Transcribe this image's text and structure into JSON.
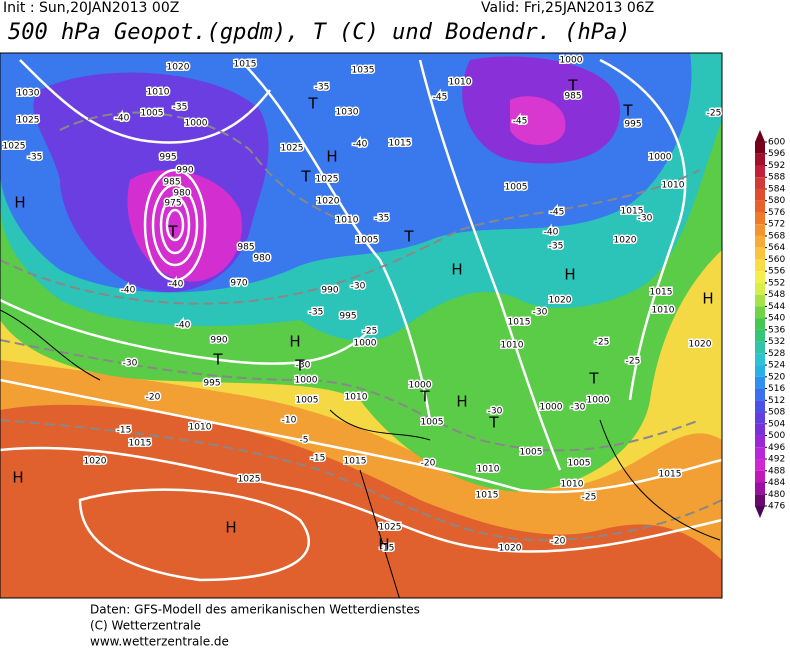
{
  "header": {
    "init": "Init : Sun,20JAN2013 00Z",
    "valid": "Valid: Fri,25JAN2013 06Z",
    "title": "500 hPa Geopot.(gpdm), T (C) und Bodendr. (hPa)"
  },
  "colorbar": {
    "labels": [
      600,
      596,
      592,
      588,
      584,
      580,
      576,
      572,
      568,
      564,
      560,
      556,
      552,
      548,
      544,
      540,
      536,
      532,
      528,
      524,
      520,
      516,
      512,
      508,
      504,
      500,
      496,
      492,
      488,
      484,
      480,
      476
    ],
    "colors": [
      "#7a0020",
      "#a3102c",
      "#c0203a",
      "#d23a3a",
      "#e04b2e",
      "#e8602a",
      "#ee7a2a",
      "#f29430",
      "#f6ad36",
      "#f9c53c",
      "#fadc44",
      "#f6ee4c",
      "#d8ee4a",
      "#a8e24a",
      "#70d446",
      "#44c850",
      "#34c47c",
      "#30c4a8",
      "#2cc4d0",
      "#28b0e8",
      "#3090f0",
      "#3a70f0",
      "#4a50e8",
      "#6040e0",
      "#7a30d8",
      "#9a28d8",
      "#b828d8",
      "#d028d0",
      "#c018b8",
      "#9a10a0",
      "#6a0870"
    ],
    "top_color": "#6a0018",
    "bottom_color": "#4a0458"
  },
  "map": {
    "labels": [
      "1020",
      "1015",
      "1030",
      "1025",
      "1025",
      "-35",
      "1010",
      "1005",
      "1000",
      "-40",
      "-35",
      "-35",
      "1035",
      "1030",
      "1025",
      "1025",
      "1020",
      "-40",
      "1015",
      "1010",
      "1005",
      "-35",
      "995",
      "990",
      "985",
      "980",
      "975",
      "985",
      "980",
      "970",
      "-40",
      "-40",
      "-40",
      "990",
      "-30",
      "995",
      "-35",
      "990",
      "995",
      "-30",
      "-25",
      "1000",
      "1000",
      "1005",
      "-30",
      "-20",
      "-15",
      "1015",
      "1010",
      "1010",
      "-10",
      "-5",
      "-15",
      "1015",
      "1020",
      "1025",
      "-20",
      "1025",
      "-15",
      "1010",
      "-45",
      "1005",
      "-45",
      "-40",
      "-35",
      "1020",
      "1015",
      "-30",
      "1000",
      "1010",
      "995",
      "985",
      "1000",
      "-45",
      "-25",
      "1020",
      "-30",
      "1015",
      "1010",
      "1015",
      "1010",
      "-25",
      "-25",
      "1020",
      "1000",
      "1005",
      "-30",
      "1000",
      "-30",
      "1000",
      "1005",
      "1005",
      "1010",
      "1015",
      "1010",
      "-25",
      "1015",
      "1020",
      "-20"
    ],
    "centers": [
      "H",
      "T",
      "T",
      "H",
      "T",
      "T",
      "H",
      "H",
      "H",
      "T",
      "H",
      "T",
      "T",
      "H",
      "T",
      "T",
      "H",
      "H",
      "H",
      "T",
      "T"
    ]
  },
  "footer": [
    "Daten: GFS-Modell des amerikanischen Wetterdienstes",
    "(C) Wetterzentrale",
    "www.wetterzentrale.de"
  ]
}
